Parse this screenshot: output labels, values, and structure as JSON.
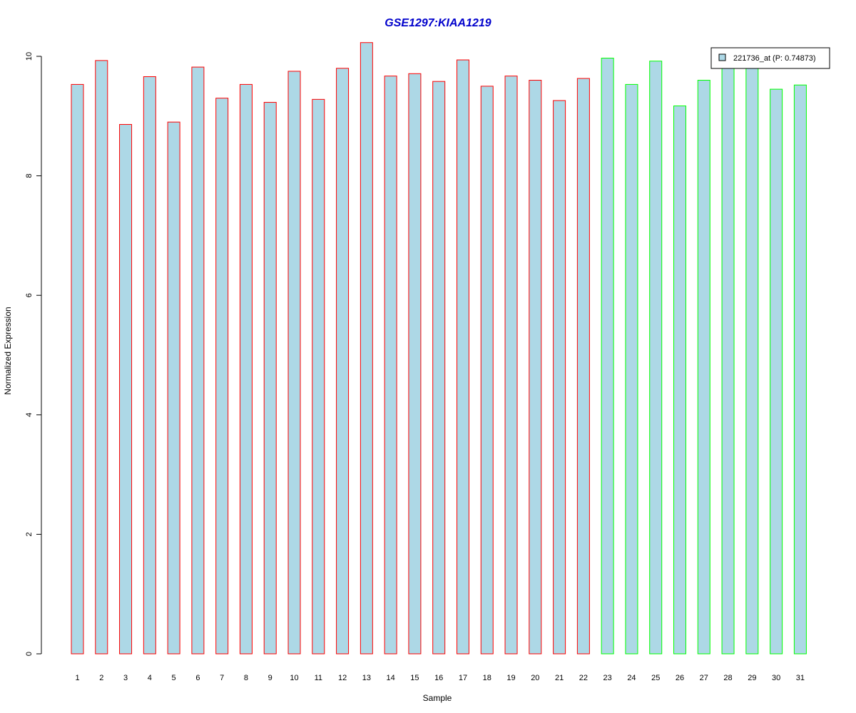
{
  "chart_data": {
    "type": "bar",
    "title": "GSE1297:KIAA1219",
    "xlabel": "Sample",
    "ylabel": "Normalized Expression",
    "ylim": [
      0,
      10.25
    ],
    "yticks": [
      0,
      2,
      4,
      6,
      8,
      10
    ],
    "categories": [
      "1",
      "2",
      "3",
      "4",
      "5",
      "6",
      "7",
      "8",
      "9",
      "10",
      "11",
      "12",
      "13",
      "14",
      "15",
      "16",
      "17",
      "18",
      "19",
      "20",
      "21",
      "22",
      "23",
      "24",
      "25",
      "26",
      "27",
      "28",
      "29",
      "30",
      "31"
    ],
    "values": [
      9.53,
      9.93,
      8.86,
      9.66,
      8.9,
      9.82,
      9.3,
      9.53,
      9.23,
      9.75,
      9.28,
      9.8,
      10.23,
      9.67,
      9.71,
      9.58,
      9.94,
      9.5,
      9.67,
      9.6,
      9.26,
      9.63,
      9.97,
      9.53,
      9.92,
      9.17,
      9.6,
      9.85,
      9.86,
      9.45,
      9.52
    ],
    "groups": [
      "g1",
      "g1",
      "g1",
      "g1",
      "g1",
      "g1",
      "g1",
      "g1",
      "g1",
      "g1",
      "g1",
      "g1",
      "g1",
      "g1",
      "g1",
      "g1",
      "g1",
      "g1",
      "g1",
      "g1",
      "g1",
      "g1",
      "g2",
      "g2",
      "g2",
      "g2",
      "g2",
      "g2",
      "g2",
      "g2",
      "g2"
    ],
    "colors": {
      "fill": "#add8e6",
      "group1_border": "#ff0000",
      "group2_border": "#00ff00",
      "title": "#0000cc"
    },
    "legend": {
      "label": "221736_at (P: 0.74873)",
      "placement": "top-right"
    },
    "grid": false
  }
}
